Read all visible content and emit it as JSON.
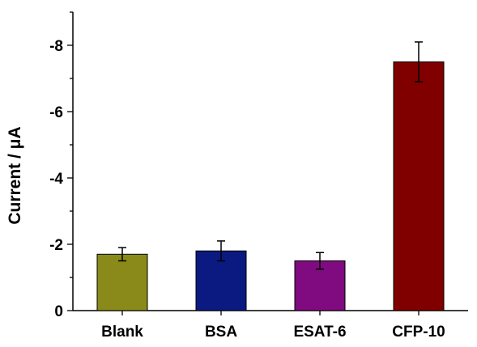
{
  "chart_data": {
    "type": "bar",
    "title": "",
    "xlabel": "",
    "ylabel": "Current / μA",
    "categories": [
      "Blank",
      "BSA",
      "ESAT-6",
      "CFP-10"
    ],
    "values": [
      -1.7,
      -1.8,
      -1.5,
      -7.5
    ],
    "errors": [
      0.2,
      0.3,
      0.25,
      0.6
    ],
    "colors": [
      "#8a8a1a",
      "#0a1a80",
      "#800a80",
      "#800000"
    ],
    "ylim": [
      0,
      -9
    ],
    "yticks": [
      0,
      -2,
      -4,
      -6,
      -8
    ],
    "ytick_labels": [
      "0",
      "-2",
      "-4",
      "-6",
      "-8"
    ],
    "grid": false,
    "legend": "none"
  }
}
